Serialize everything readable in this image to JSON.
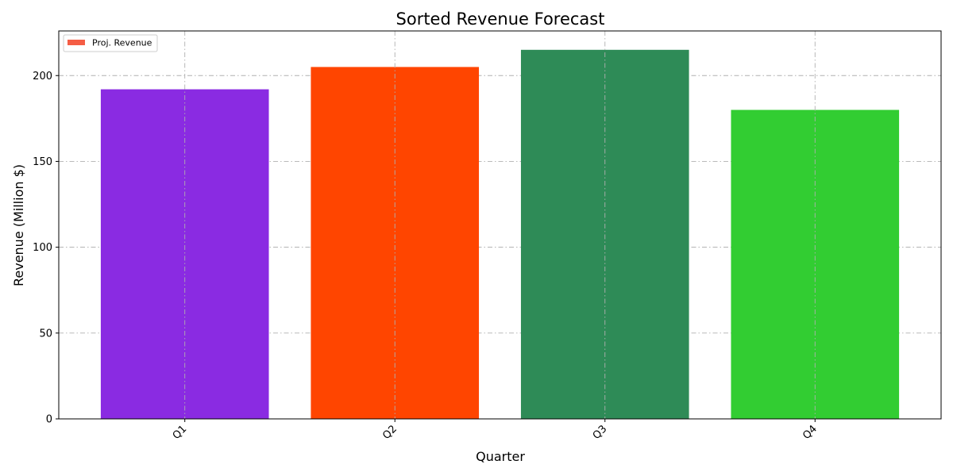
{
  "chart_data": {
    "type": "bar",
    "title": "Sorted Revenue Forecast",
    "xlabel": "Quarter",
    "ylabel": "Revenue (Million $)",
    "categories": [
      "Q1",
      "Q2",
      "Q3",
      "Q4"
    ],
    "series": [
      {
        "name": "Proj. Revenue",
        "values": [
          192,
          205,
          215,
          180
        ]
      }
    ],
    "bar_colors": [
      "#8a2be2",
      "#ff4500",
      "#2e8b57",
      "#32cd32"
    ],
    "legend_color": "#f55d45",
    "ylim": [
      0,
      226
    ],
    "yticks": [
      0,
      50,
      100,
      150,
      200
    ],
    "grid": true,
    "legend_position": "top-left",
    "xtick_rotation": 45
  }
}
